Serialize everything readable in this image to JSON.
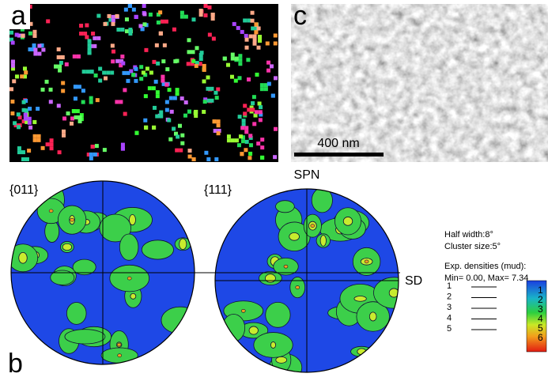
{
  "panels": {
    "a": {
      "label": "a"
    },
    "c": {
      "label": "c",
      "scale_bar": "400 nm"
    },
    "b": {
      "label": "b",
      "pole_figures": [
        {
          "title": "{011}"
        },
        {
          "title": "{111}",
          "top_axis": "SPN",
          "right_axis": "SD"
        }
      ]
    }
  },
  "legend": {
    "half_width": "Half width:8°",
    "cluster_size": "Cluster size:5°",
    "densities_title": "Exp. densities (mud):",
    "range": "Min= 0.00, Max= 7.34",
    "contour_levels": [
      "1",
      "2",
      "3",
      "4",
      "5"
    ],
    "color_scale_labels": [
      "1",
      "2",
      "3",
      "4",
      "5",
      "6"
    ]
  }
}
